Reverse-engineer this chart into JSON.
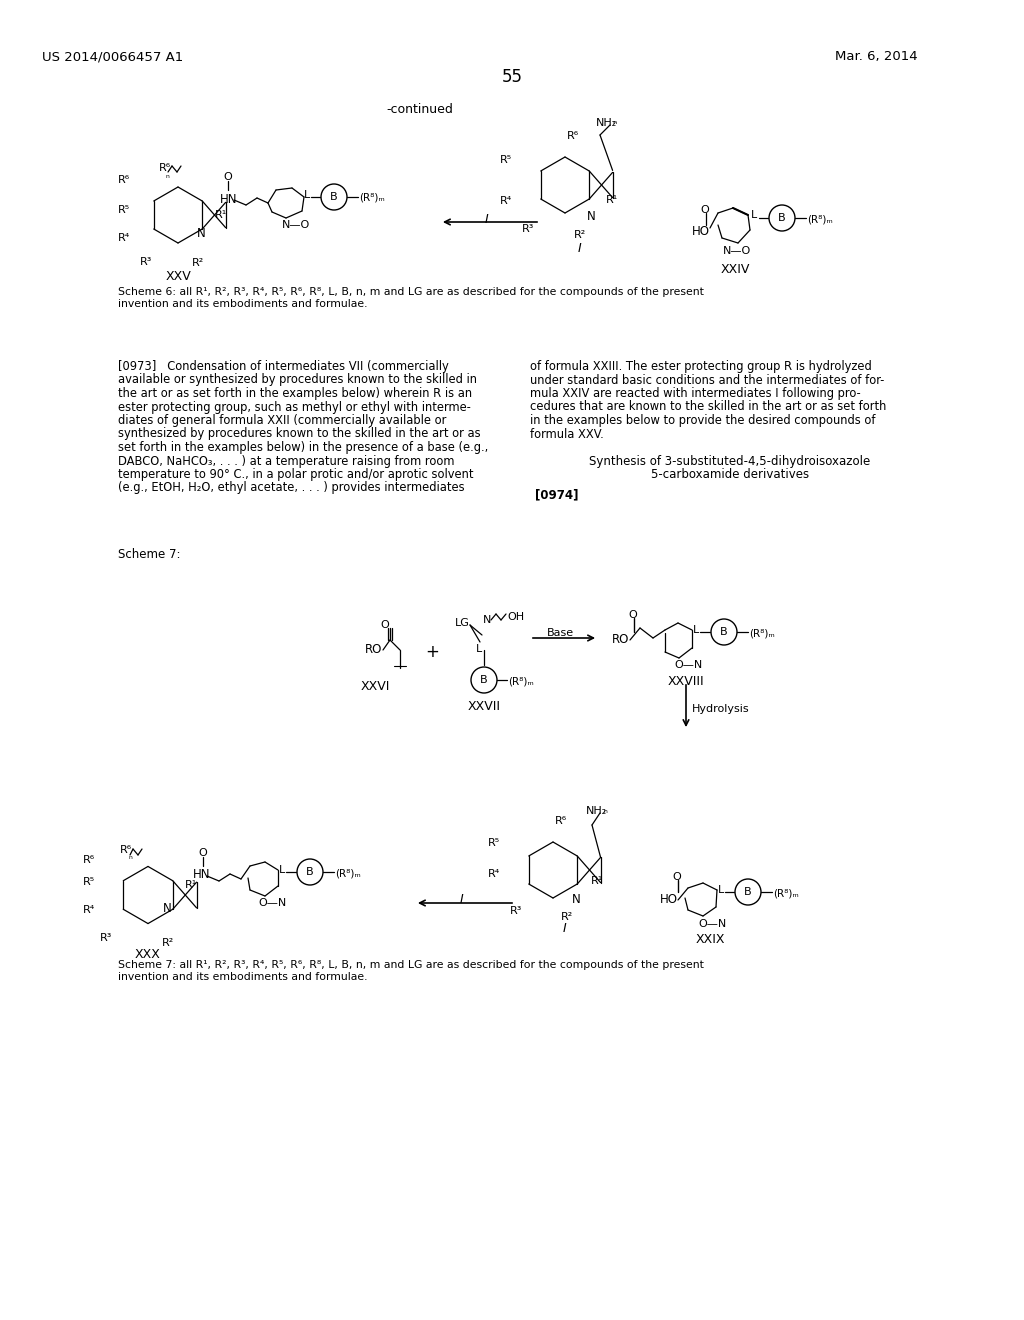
{
  "page_number": "55",
  "patent_number": "US 2014/0066457 A1",
  "patent_date": "Mar. 6, 2014",
  "background_color": "#ffffff",
  "continued_label": "-continued",
  "scheme6_note_line1": "Scheme 6: all R¹, R², R³, R⁴, R⁵, R⁶, R⁸, L, B, n, m and LG are as described for the compounds of the present",
  "scheme6_note_line2": "invention and its embodiments and formulae.",
  "scheme7_note_line1": "Scheme 7: all R¹, R², R³, R⁴, R⁵, R⁶, R⁸, L, B, n, m and LG are as described for the compounds of the present",
  "scheme7_note_line2": "invention and its embodiments and formulae.",
  "para_left_lines": [
    "[0973]   Condensation of intermediates VII (commercially",
    "available or synthesized by procedures known to the skilled in",
    "the art or as set forth in the examples below) wherein R is an",
    "ester protecting group, such as methyl or ethyl with interme-",
    "diates of general formula XXII (commercially available or",
    "synthesized by procedures known to the skilled in the art or as",
    "set forth in the examples below) in the presence of a base (e.g.,",
    "DABCO, NaHCO₃, . . . ) at a temperature raising from room",
    "temperature to 90° C., in a polar protic and/or aprotic solvent",
    "(e.g., EtOH, H₂O, ethyl acetate, . . . ) provides intermediates"
  ],
  "para_right_lines": [
    "of formula XXIII. The ester protecting group R is hydrolyzed",
    "under standard basic conditions and the intermediates of for-",
    "mula XXIV are reacted with intermediates I following pro-",
    "cedures that are known to the skilled in the art or as set forth",
    "in the examples below to provide the desired compounds of",
    "formula XXV."
  ],
  "synthesis_line1": "Synthesis of 3-substituted-4,5-dihydroisoxazole",
  "synthesis_line2": "5-carboxamide derivatives",
  "para_0974": "[0974]",
  "scheme7_label": "Scheme 7:",
  "hydrolysis_label": "Hydrolysis"
}
